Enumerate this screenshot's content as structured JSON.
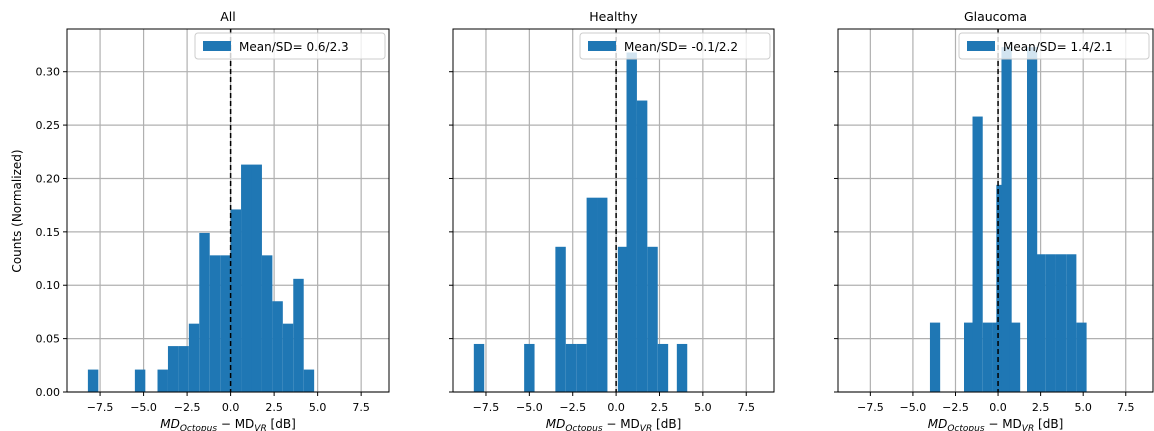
{
  "colors": {
    "bar": "#1f77b4",
    "grid": "#b0b0b0",
    "meanline": "#000000"
  },
  "shared": {
    "ylabel": "Counts (Normalized)",
    "xlabel_main": "MD",
    "xlabel_sub1": "Octopus",
    "xlabel_minus": " − MD",
    "xlabel_sub2": "VR",
    "xlabel_unit": " [dB]",
    "xlim": [
      -9.4,
      9.1
    ],
    "ylim": [
      0,
      0.34
    ],
    "xticks": [
      -7.5,
      -5.0,
      -2.5,
      0.0,
      2.5,
      5.0,
      7.5
    ],
    "xtick_labels": [
      "−7.5",
      "−5.0",
      "−2.5",
      "0.0",
      "2.5",
      "5.0",
      "7.5"
    ],
    "yticks": [
      0.0,
      0.05,
      0.1,
      0.15,
      0.2,
      0.25,
      0.3
    ],
    "ytick_labels": [
      "0.00",
      "0.05",
      "0.10",
      "0.15",
      "0.20",
      "0.25",
      "0.30"
    ],
    "mean_line_x": 0.0,
    "grid": true,
    "legend_position": "top-right"
  },
  "chart_data": [
    {
      "type": "bar",
      "title": "All",
      "legend": "Mean/SD= 0.6/2.3",
      "bin_width": 0.6,
      "bins": [
        {
          "x": -8.2,
          "y": 0.021
        },
        {
          "x": -5.5,
          "y": 0.021
        },
        {
          "x": -4.2,
          "y": 0.021
        },
        {
          "x": -3.6,
          "y": 0.043
        },
        {
          "x": -3.0,
          "y": 0.043
        },
        {
          "x": -2.4,
          "y": 0.064
        },
        {
          "x": -1.8,
          "y": 0.149
        },
        {
          "x": -1.2,
          "y": 0.128
        },
        {
          "x": -0.6,
          "y": 0.128
        },
        {
          "x": 0.0,
          "y": 0.171
        },
        {
          "x": 0.6,
          "y": 0.213
        },
        {
          "x": 1.2,
          "y": 0.213
        },
        {
          "x": 1.8,
          "y": 0.128
        },
        {
          "x": 2.4,
          "y": 0.085
        },
        {
          "x": 3.0,
          "y": 0.064
        },
        {
          "x": 3.6,
          "y": 0.106
        },
        {
          "x": 4.2,
          "y": 0.021
        }
      ]
    },
    {
      "type": "bar",
      "title": "Healthy",
      "legend": "Mean/SD= -0.1/2.2",
      "bin_width": 0.6,
      "bins": [
        {
          "x": -8.2,
          "y": 0.045
        },
        {
          "x": -5.3,
          "y": 0.045
        },
        {
          "x": -3.5,
          "y": 0.136
        },
        {
          "x": -2.9,
          "y": 0.045
        },
        {
          "x": -2.3,
          "y": 0.045
        },
        {
          "x": -1.7,
          "y": 0.182
        },
        {
          "x": -1.1,
          "y": 0.182
        },
        {
          "x": 0.1,
          "y": 0.136
        },
        {
          "x": 0.6,
          "y": 0.318
        },
        {
          "x": 1.2,
          "y": 0.273
        },
        {
          "x": 1.8,
          "y": 0.136
        },
        {
          "x": 2.4,
          "y": 0.045
        },
        {
          "x": 3.5,
          "y": 0.045
        }
      ]
    },
    {
      "type": "bar",
      "title": "Glaucoma",
      "legend": "Mean/SD= 1.4/2.1",
      "bin_width": 0.6,
      "bins": [
        {
          "x": -4.0,
          "y": 0.065
        },
        {
          "x": -2.0,
          "y": 0.065
        },
        {
          "x": -1.5,
          "y": 0.258
        },
        {
          "x": -0.9,
          "y": 0.065
        },
        {
          "x": -0.3,
          "y": 0.065
        },
        {
          "x": -0.1,
          "y": 0.194
        },
        {
          "x": 0.2,
          "y": 0.323
        },
        {
          "x": 0.7,
          "y": 0.065
        },
        {
          "x": 1.7,
          "y": 0.323
        },
        {
          "x": 2.2,
          "y": 0.129
        },
        {
          "x": 2.8,
          "y": 0.129
        },
        {
          "x": 3.4,
          "y": 0.129
        },
        {
          "x": 4.0,
          "y": 0.129
        },
        {
          "x": 4.6,
          "y": 0.065
        }
      ]
    }
  ]
}
